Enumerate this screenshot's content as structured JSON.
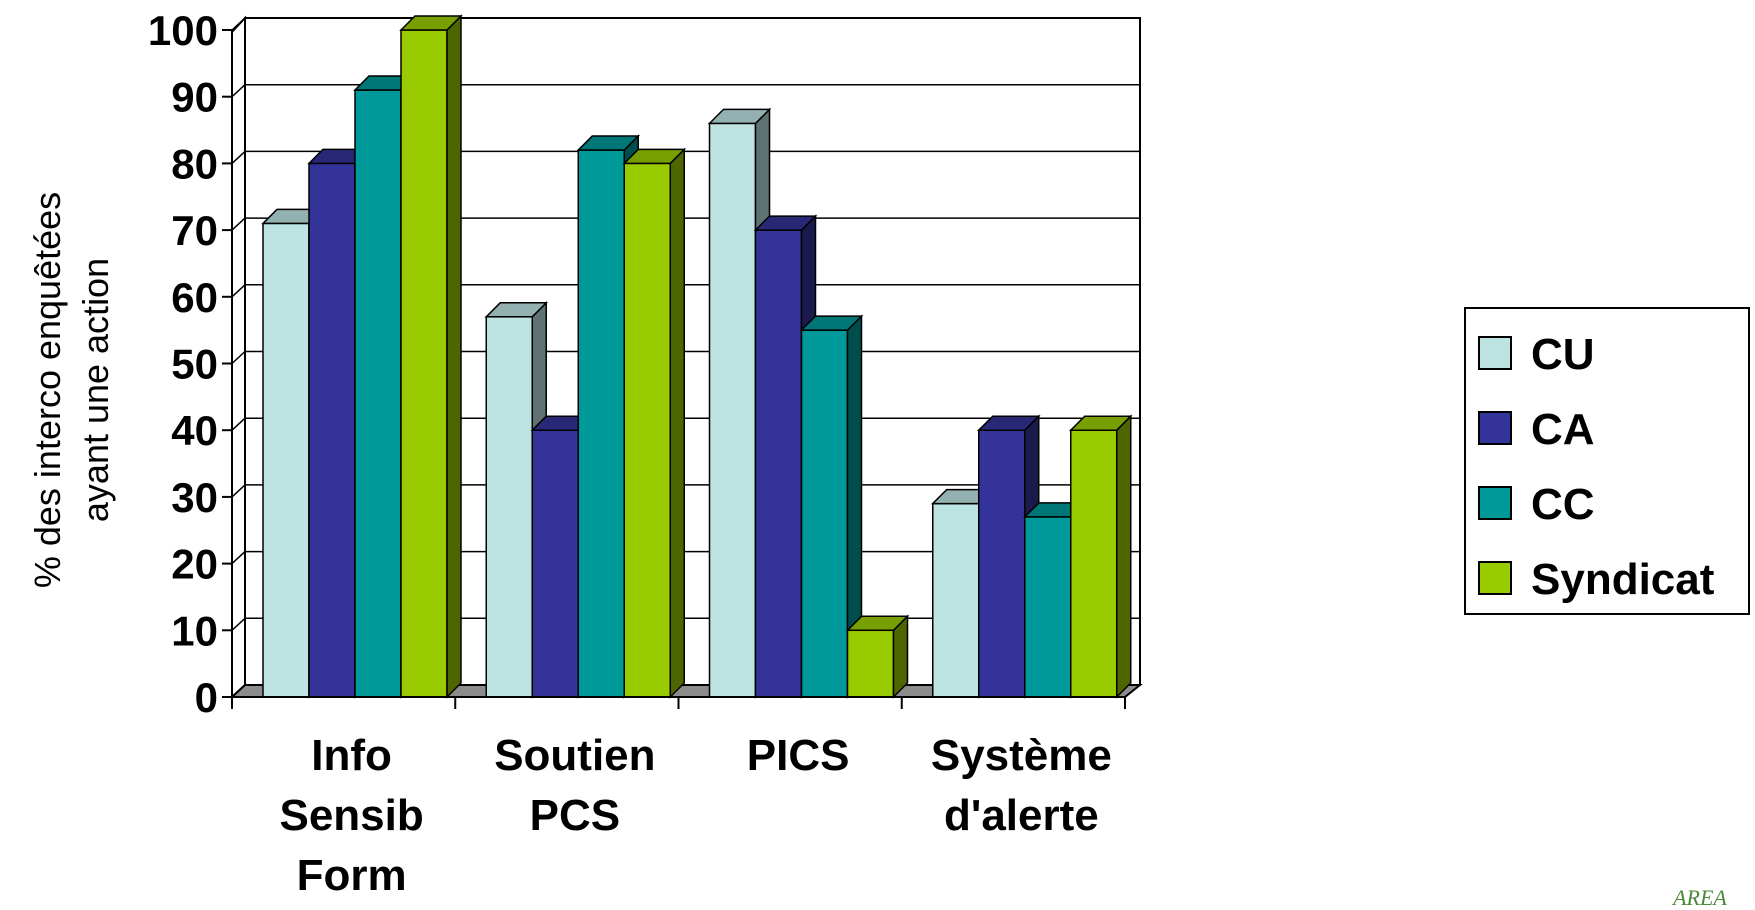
{
  "chart_data": {
    "type": "bar",
    "title": "",
    "xlabel": "",
    "ylabel": [
      "% des interco enquêtées",
      "ayant une action"
    ],
    "ylim": [
      0,
      100
    ],
    "ytick_labels": [
      "0",
      "10",
      "20",
      "30",
      "40",
      "50",
      "60",
      "70",
      "80",
      "90",
      "100"
    ],
    "categories": [
      [
        "Info",
        "Sensib",
        "Form"
      ],
      [
        "Soutien",
        "PCS"
      ],
      [
        "PICS"
      ],
      [
        "Système",
        "d'alerte"
      ]
    ],
    "series": [
      {
        "name": "CU",
        "color": "#BDE3E3",
        "values": [
          71,
          57,
          86,
          29
        ]
      },
      {
        "name": "CA",
        "color": "#333399",
        "values": [
          80,
          40,
          70,
          40
        ]
      },
      {
        "name": "CC",
        "color": "#009999",
        "values": [
          91,
          82,
          55,
          27
        ]
      },
      {
        "name": "Syndicat",
        "color": "#99CC00",
        "values": [
          100,
          80,
          10,
          40
        ]
      }
    ],
    "grid": true,
    "legend_position": "right",
    "style": "3d-clustered"
  },
  "watermark": {
    "text": "AREA"
  }
}
